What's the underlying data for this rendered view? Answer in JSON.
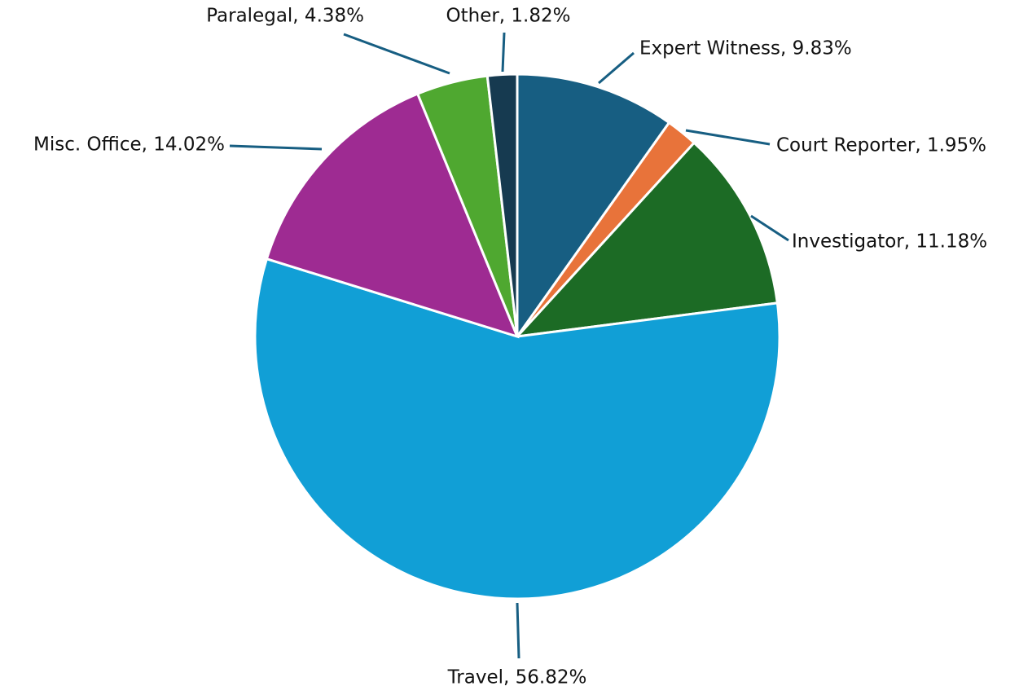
{
  "chart_data": {
    "type": "pie",
    "categories": [
      "Expert Witness",
      "Court Reporter",
      "Investigator",
      "Travel",
      "Misc. Office",
      "Paralegal",
      "Other"
    ],
    "values": [
      9.83,
      1.95,
      11.18,
      56.82,
      14.02,
      4.38,
      1.82
    ],
    "value_labels": [
      "Expert Witness, 9.83%",
      "Court Reporter, 1.95%",
      "Investigator, 11.18%",
      "Travel, 56.82%",
      "Misc. Office, 14.02%",
      "Paralegal, 4.38%",
      "Other, 1.82%"
    ],
    "colors": [
      "#175e82",
      "#e8733a",
      "#1c6b25",
      "#119fd6",
      "#9e2b92",
      "#4fa830",
      "#163a50"
    ]
  }
}
